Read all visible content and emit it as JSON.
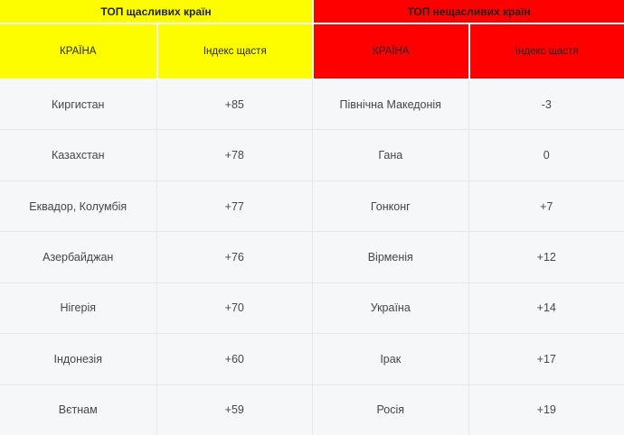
{
  "page": {
    "accent_yellow": "#fdfd00",
    "accent_red": "#fe0000",
    "body_background": "#f6f7f8",
    "divider_color": "#e6e7e9"
  },
  "tables": [
    {
      "title": "ТОП щасливих країн",
      "columns": {
        "country": "КРАЇНА",
        "index": "Індекс щастя"
      },
      "rows": [
        {
          "country": "Киргистан",
          "index": "+85"
        },
        {
          "country": "Казахстан",
          "index": "+78"
        },
        {
          "country": "Еквадор, Колумбія",
          "index": "+77"
        },
        {
          "country": "Азербайджан",
          "index": "+76"
        },
        {
          "country": "Нігерія",
          "index": "+70"
        },
        {
          "country": "Індонезія",
          "index": "+60"
        },
        {
          "country": "Вєтнам",
          "index": "+59"
        }
      ]
    },
    {
      "title": "ТОП нещасливих країн",
      "columns": {
        "country": "КРАЇНА",
        "index": "Індекс щастя"
      },
      "rows": [
        {
          "country": "Північна Македонія",
          "index": "-3"
        },
        {
          "country": "Гана",
          "index": "0"
        },
        {
          "country": "Гонконг",
          "index": "+7"
        },
        {
          "country": "Вірменія",
          "index": "+12"
        },
        {
          "country": "Україна",
          "index": "+14"
        },
        {
          "country": "Ірак",
          "index": "+17"
        },
        {
          "country": "Росія",
          "index": "+19"
        }
      ]
    }
  ],
  "chart_data": [
    {
      "type": "table",
      "title": "ТОП щасливих країн",
      "columns": [
        "КРАЇНА",
        "Індекс щастя"
      ],
      "rows": [
        [
          "Киргистан",
          85
        ],
        [
          "Казахстан",
          78
        ],
        [
          "Еквадор, Колумбія",
          77
        ],
        [
          "Азербайджан",
          76
        ],
        [
          "Нігерія",
          70
        ],
        [
          "Індонезія",
          60
        ],
        [
          "Вєтнам",
          59
        ]
      ]
    },
    {
      "type": "table",
      "title": "ТОП нещасливих країн",
      "columns": [
        "КРАЇНА",
        "Індекс щастя"
      ],
      "rows": [
        [
          "Північна Македонія",
          -3
        ],
        [
          "Гана",
          0
        ],
        [
          "Гонконг",
          7
        ],
        [
          "Вірменія",
          12
        ],
        [
          "Україна",
          14
        ],
        [
          "Ірак",
          17
        ],
        [
          "Росія",
          19
        ]
      ]
    }
  ]
}
